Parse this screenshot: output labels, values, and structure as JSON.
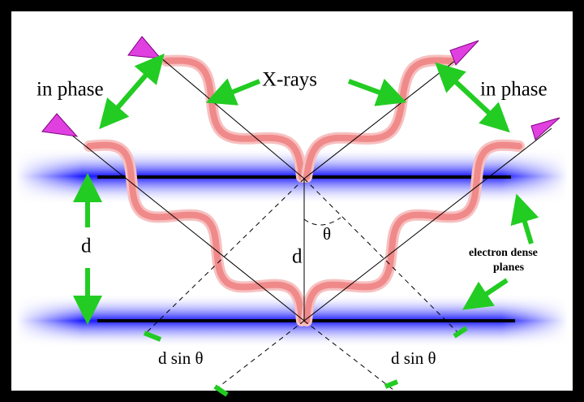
{
  "labels": {
    "in_phase_left": "in phase",
    "in_phase_right": "in phase",
    "x_rays": "X-rays",
    "d_left": "d",
    "d_center": "d",
    "theta": "θ",
    "electron_dense": "electron dense",
    "planes": "planes",
    "d_sin_theta_left": "d sin θ",
    "d_sin_theta_right": "d sin θ"
  }
}
